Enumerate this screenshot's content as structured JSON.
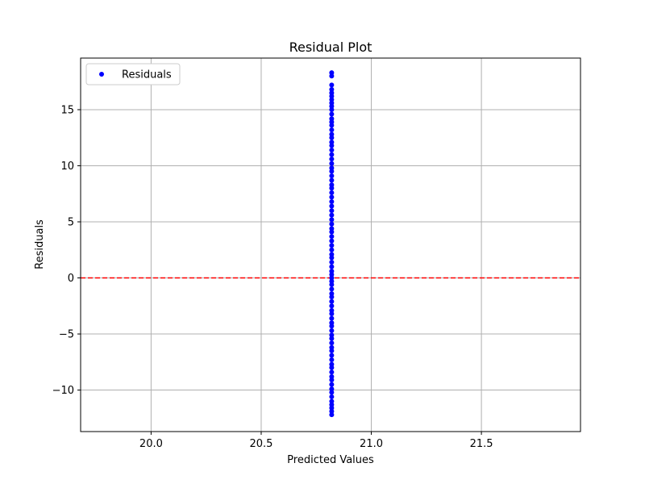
{
  "chart_data": {
    "type": "scatter",
    "title": "Residual Plot",
    "xlabel": "Predicted Values",
    "ylabel": "Residuals",
    "xlim": [
      19.68,
      21.95
    ],
    "ylim": [
      -13.7,
      19.6
    ],
    "xticks": [
      20.0,
      20.5,
      21.0,
      21.5
    ],
    "xtick_labels": [
      "20.0",
      "20.5",
      "21.0",
      "21.5"
    ],
    "yticks": [
      -10,
      -5,
      0,
      5,
      10,
      15
    ],
    "ytick_labels": [
      "−10",
      "−5",
      "0",
      "5",
      "10",
      "15"
    ],
    "grid": true,
    "legend": {
      "position": "top-left",
      "entries": [
        "Residuals"
      ]
    },
    "reference_line": {
      "y": 0,
      "color": "#ff0000",
      "style": "dashed"
    },
    "series": [
      {
        "name": "Residuals",
        "color": "#0000ff",
        "x": 20.82,
        "y": [
          18.3,
          18.0,
          17.2,
          16.8,
          16.5,
          16.2,
          15.9,
          15.6,
          15.3,
          15.0,
          14.6,
          14.2,
          13.9,
          13.6,
          13.2,
          12.8,
          12.5,
          12.1,
          11.8,
          11.4,
          11.0,
          10.6,
          10.2,
          9.8,
          9.5,
          9.1,
          8.7,
          8.3,
          8.0,
          7.6,
          7.2,
          6.8,
          6.4,
          6.0,
          5.6,
          5.2,
          4.8,
          4.4,
          4.1,
          3.7,
          3.3,
          2.9,
          2.5,
          2.1,
          1.8,
          1.4,
          1.0,
          0.6,
          0.3,
          0.0,
          -0.3,
          -0.6,
          -1.0,
          -1.4,
          -1.7,
          -2.1,
          -2.5,
          -2.9,
          -3.2,
          -3.6,
          -4.0,
          -4.3,
          -4.7,
          -5.1,
          -5.4,
          -5.8,
          -6.2,
          -6.5,
          -6.9,
          -7.3,
          -7.7,
          -8.0,
          -8.4,
          -8.8,
          -9.1,
          -9.5,
          -9.9,
          -10.2,
          -10.6,
          -11.0,
          -11.3,
          -11.6,
          -11.9,
          -12.2
        ]
      }
    ]
  }
}
